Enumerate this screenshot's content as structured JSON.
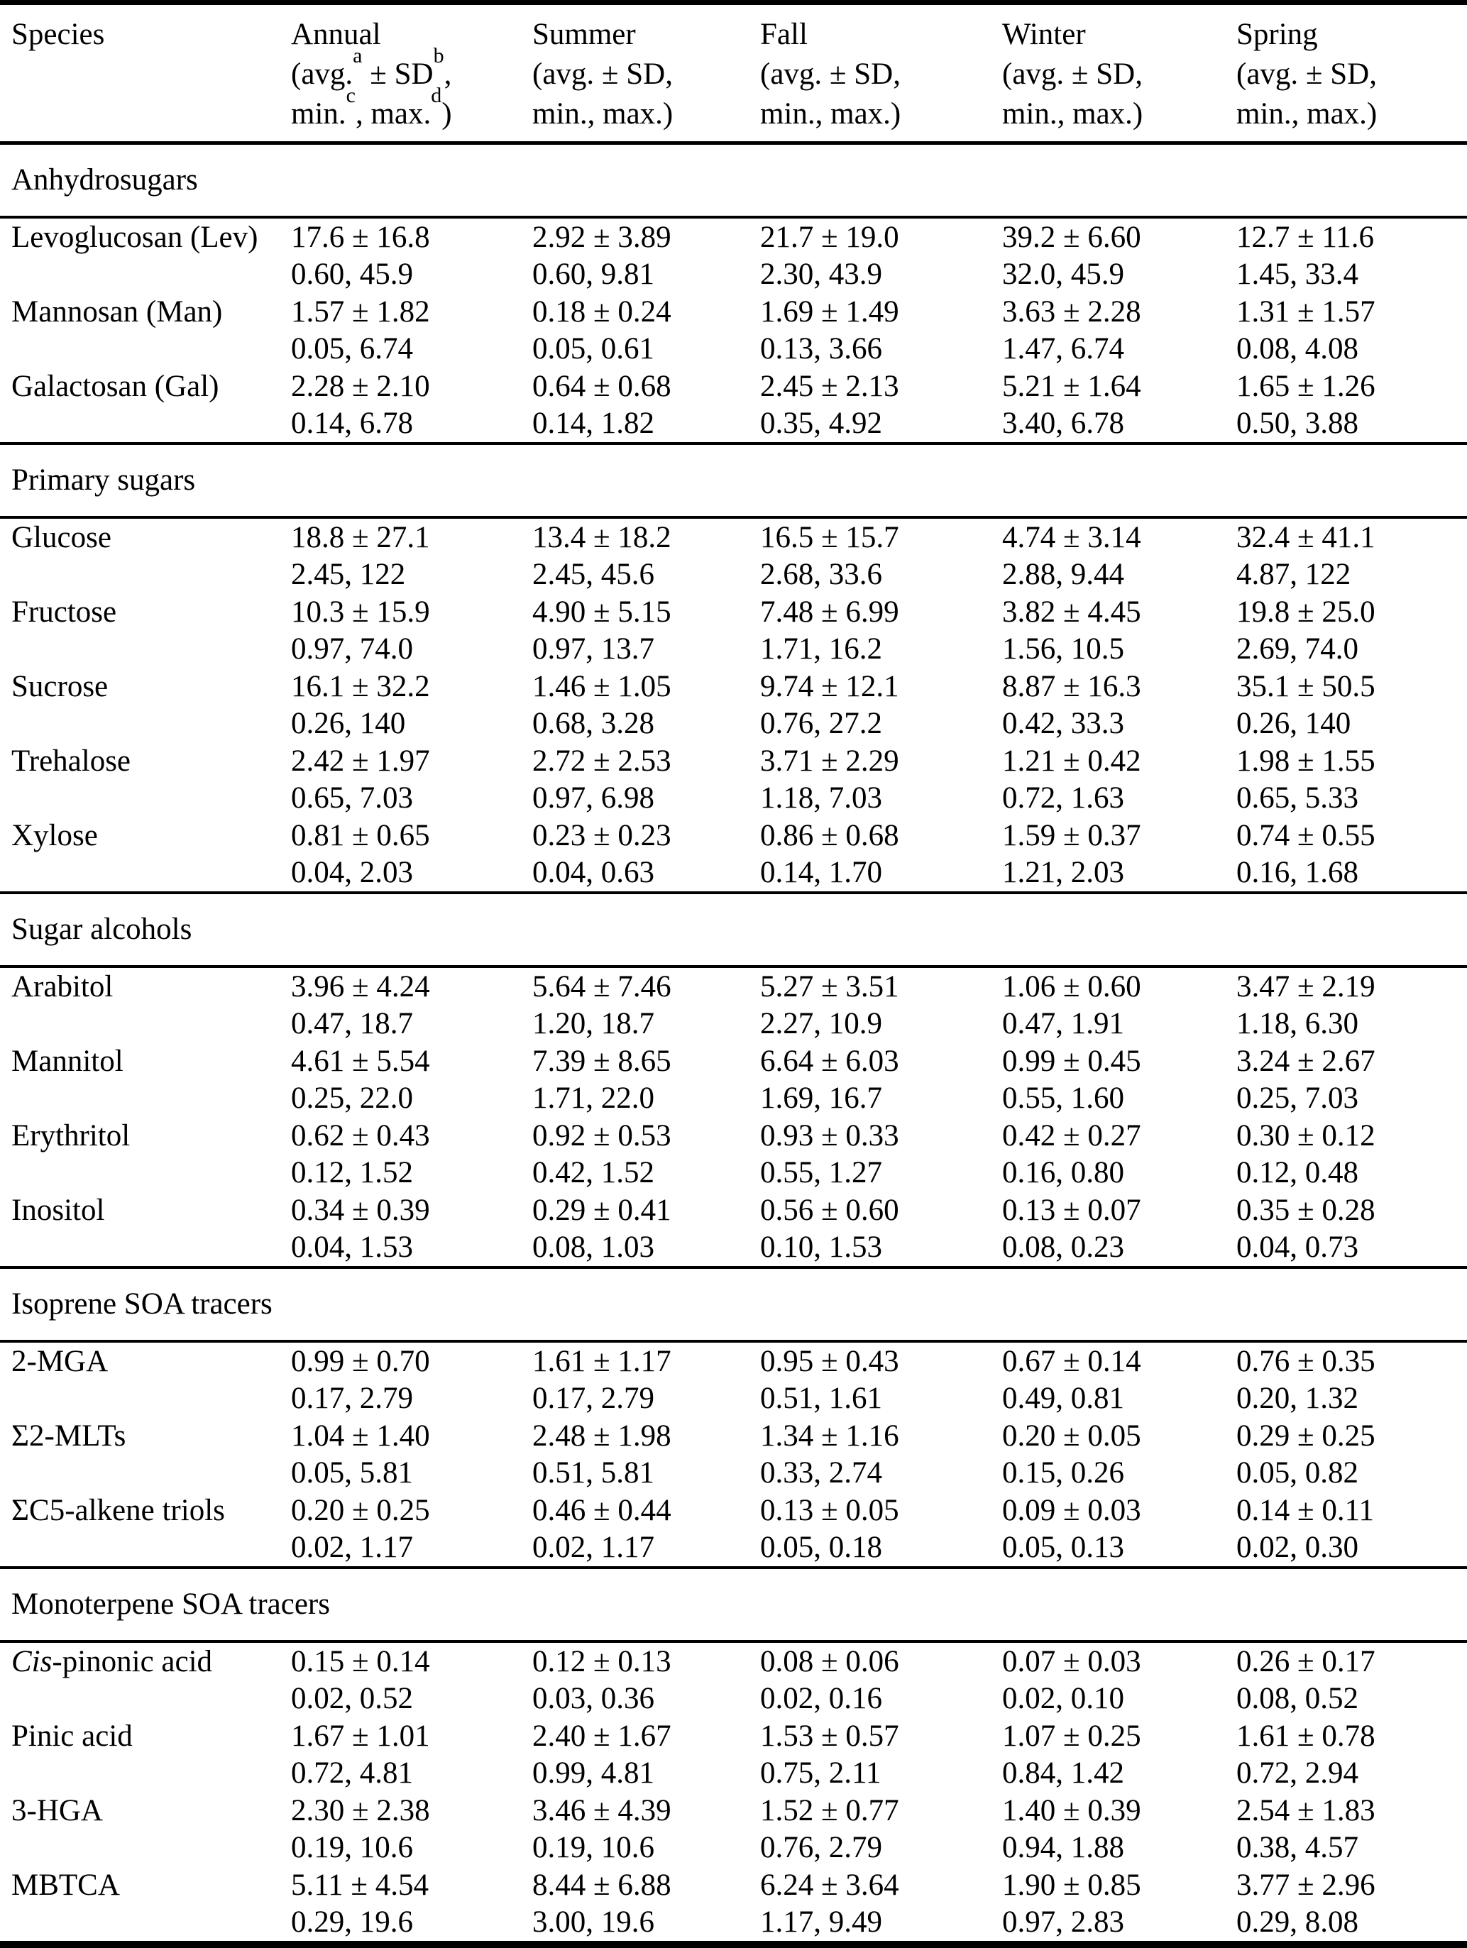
{
  "header": {
    "species_label": "Species",
    "annual": {
      "name": "Annual",
      "l2a": "(avg.",
      "sup_a": "a",
      "l2b": " ± SD",
      "sup_b": "b",
      "l2c": ",",
      "l3a": "min.",
      "sup_c": "c",
      "l3b": ", max.",
      "sup_d": "d",
      "l3c": ")"
    },
    "seasons": [
      {
        "name": "Summer",
        "line2": "(avg. ± SD,",
        "line3": "min., max.)"
      },
      {
        "name": "Fall",
        "line2": "(avg. ± SD,",
        "line3": "min., max.)"
      },
      {
        "name": "Winter",
        "line2": "(avg. ± SD,",
        "line3": "min., max.)"
      },
      {
        "name": "Spring",
        "line2": "(avg. ± SD,",
        "line3": "min., max.)"
      }
    ]
  },
  "sections": [
    {
      "title": "Anhydrosugars",
      "rows": [
        {
          "species_italic": "",
          "species": "Levoglucosan (Lev)",
          "values": [
            {
              "avg": "17.6 ± 16.8",
              "range": "0.60, 45.9"
            },
            {
              "avg": "2.92 ± 3.89",
              "range": "0.60, 9.81"
            },
            {
              "avg": "21.7 ± 19.0",
              "range": "2.30, 43.9"
            },
            {
              "avg": "39.2 ± 6.60",
              "range": "32.0, 45.9"
            },
            {
              "avg": "12.7 ± 11.6",
              "range": "1.45, 33.4"
            }
          ]
        },
        {
          "species_italic": "",
          "species": "Mannosan (Man)",
          "values": [
            {
              "avg": "1.57 ± 1.82",
              "range": "0.05, 6.74"
            },
            {
              "avg": "0.18 ± 0.24",
              "range": "0.05, 0.61"
            },
            {
              "avg": "1.69 ± 1.49",
              "range": "0.13, 3.66"
            },
            {
              "avg": "3.63 ± 2.28",
              "range": "1.47, 6.74"
            },
            {
              "avg": "1.31 ± 1.57",
              "range": "0.08, 4.08"
            }
          ]
        },
        {
          "species_italic": "",
          "species": "Galactosan (Gal)",
          "values": [
            {
              "avg": "2.28 ± 2.10",
              "range": "0.14, 6.78"
            },
            {
              "avg": "0.64 ± 0.68",
              "range": "0.14, 1.82"
            },
            {
              "avg": "2.45 ± 2.13",
              "range": "0.35, 4.92"
            },
            {
              "avg": "5.21 ± 1.64",
              "range": "3.40, 6.78"
            },
            {
              "avg": "1.65 ± 1.26",
              "range": "0.50, 3.88"
            }
          ]
        }
      ]
    },
    {
      "title": "Primary sugars",
      "rows": [
        {
          "species_italic": "",
          "species": "Glucose",
          "values": [
            {
              "avg": "18.8 ± 27.1",
              "range": "2.45, 122"
            },
            {
              "avg": "13.4 ± 18.2",
              "range": "2.45, 45.6"
            },
            {
              "avg": "16.5 ± 15.7",
              "range": "2.68, 33.6"
            },
            {
              "avg": "4.74 ± 3.14",
              "range": "2.88, 9.44"
            },
            {
              "avg": "32.4 ± 41.1",
              "range": "4.87, 122"
            }
          ]
        },
        {
          "species_italic": "",
          "species": "Fructose",
          "values": [
            {
              "avg": "10.3 ± 15.9",
              "range": "0.97, 74.0"
            },
            {
              "avg": "4.90 ± 5.15",
              "range": "0.97, 13.7"
            },
            {
              "avg": "7.48 ± 6.99",
              "range": "1.71, 16.2"
            },
            {
              "avg": "3.82 ± 4.45",
              "range": "1.56, 10.5"
            },
            {
              "avg": "19.8 ± 25.0",
              "range": "2.69, 74.0"
            }
          ]
        },
        {
          "species_italic": "",
          "species": "Sucrose",
          "values": [
            {
              "avg": "16.1 ± 32.2",
              "range": "0.26, 140"
            },
            {
              "avg": "1.46 ± 1.05",
              "range": "0.68, 3.28"
            },
            {
              "avg": "9.74 ± 12.1",
              "range": "0.76, 27.2"
            },
            {
              "avg": "8.87 ± 16.3",
              "range": "0.42, 33.3"
            },
            {
              "avg": "35.1 ± 50.5",
              "range": "0.26, 140"
            }
          ]
        },
        {
          "species_italic": "",
          "species": "Trehalose",
          "values": [
            {
              "avg": "2.42 ± 1.97",
              "range": "0.65, 7.03"
            },
            {
              "avg": "2.72 ± 2.53",
              "range": "0.97, 6.98"
            },
            {
              "avg": "3.71 ± 2.29",
              "range": "1.18, 7.03"
            },
            {
              "avg": "1.21 ± 0.42",
              "range": "0.72, 1.63"
            },
            {
              "avg": "1.98 ± 1.55",
              "range": "0.65, 5.33"
            }
          ]
        },
        {
          "species_italic": "",
          "species": "Xylose",
          "values": [
            {
              "avg": "0.81 ± 0.65",
              "range": "0.04, 2.03"
            },
            {
              "avg": "0.23 ± 0.23",
              "range": "0.04, 0.63"
            },
            {
              "avg": "0.86 ± 0.68",
              "range": "0.14, 1.70"
            },
            {
              "avg": "1.59 ± 0.37",
              "range": "1.21, 2.03"
            },
            {
              "avg": "0.74 ± 0.55",
              "range": "0.16, 1.68"
            }
          ]
        }
      ]
    },
    {
      "title": "Sugar alcohols",
      "rows": [
        {
          "species_italic": "",
          "species": "Arabitol",
          "values": [
            {
              "avg": "3.96 ± 4.24",
              "range": "0.47, 18.7"
            },
            {
              "avg": "5.64 ± 7.46",
              "range": "1.20, 18.7"
            },
            {
              "avg": "5.27 ± 3.51",
              "range": "2.27, 10.9"
            },
            {
              "avg": "1.06 ± 0.60",
              "range": "0.47, 1.91"
            },
            {
              "avg": "3.47 ± 2.19",
              "range": "1.18, 6.30"
            }
          ]
        },
        {
          "species_italic": "",
          "species": "Mannitol",
          "values": [
            {
              "avg": "4.61 ± 5.54",
              "range": "0.25, 22.0"
            },
            {
              "avg": "7.39 ± 8.65",
              "range": "1.71, 22.0"
            },
            {
              "avg": "6.64 ± 6.03",
              "range": "1.69, 16.7"
            },
            {
              "avg": "0.99 ± 0.45",
              "range": "0.55, 1.60"
            },
            {
              "avg": "3.24 ± 2.67",
              "range": "0.25, 7.03"
            }
          ]
        },
        {
          "species_italic": "",
          "species": "Erythritol",
          "values": [
            {
              "avg": "0.62 ± 0.43",
              "range": "0.12, 1.52"
            },
            {
              "avg": "0.92 ± 0.53",
              "range": "0.42, 1.52"
            },
            {
              "avg": "0.93 ± 0.33",
              "range": "0.55, 1.27"
            },
            {
              "avg": "0.42 ± 0.27",
              "range": "0.16, 0.80"
            },
            {
              "avg": "0.30 ± 0.12",
              "range": "0.12, 0.48"
            }
          ]
        },
        {
          "species_italic": "",
          "species": "Inositol",
          "values": [
            {
              "avg": "0.34 ± 0.39",
              "range": "0.04, 1.53"
            },
            {
              "avg": "0.29 ± 0.41",
              "range": "0.08, 1.03"
            },
            {
              "avg": "0.56 ± 0.60",
              "range": "0.10, 1.53"
            },
            {
              "avg": "0.13 ± 0.07",
              "range": "0.08, 0.23"
            },
            {
              "avg": "0.35 ± 0.28",
              "range": "0.04, 0.73"
            }
          ]
        }
      ]
    },
    {
      "title": "Isoprene SOA tracers",
      "rows": [
        {
          "species_italic": "",
          "species": "2-MGA",
          "values": [
            {
              "avg": "0.99 ± 0.70",
              "range": "0.17, 2.79"
            },
            {
              "avg": "1.61 ± 1.17",
              "range": "0.17, 2.79"
            },
            {
              "avg": "0.95 ± 0.43",
              "range": "0.51, 1.61"
            },
            {
              "avg": "0.67 ± 0.14",
              "range": "0.49, 0.81"
            },
            {
              "avg": "0.76 ± 0.35",
              "range": "0.20, 1.32"
            }
          ]
        },
        {
          "species_italic": "",
          "species": "Σ2-MLTs",
          "values": [
            {
              "avg": "1.04 ± 1.40",
              "range": "0.05, 5.81"
            },
            {
              "avg": "2.48 ± 1.98",
              "range": "0.51, 5.81"
            },
            {
              "avg": "1.34 ± 1.16",
              "range": "0.33, 2.74"
            },
            {
              "avg": "0.20 ± 0.05",
              "range": "0.15, 0.26"
            },
            {
              "avg": "0.29 ± 0.25",
              "range": "0.05, 0.82"
            }
          ]
        },
        {
          "species_italic": "",
          "species": "ΣC5-alkene triols",
          "values": [
            {
              "avg": "0.20 ± 0.25",
              "range": "0.02, 1.17"
            },
            {
              "avg": "0.46 ± 0.44",
              "range": "0.02, 1.17"
            },
            {
              "avg": "0.13 ± 0.05",
              "range": "0.05, 0.18"
            },
            {
              "avg": "0.09 ± 0.03",
              "range": "0.05, 0.13"
            },
            {
              "avg": "0.14 ± 0.11",
              "range": "0.02, 0.30"
            }
          ]
        }
      ]
    },
    {
      "title": "Monoterpene SOA tracers",
      "rows": [
        {
          "species_italic": "Cis",
          "species": "-pinonic acid",
          "values": [
            {
              "avg": "0.15 ± 0.14",
              "range": "0.02, 0.52"
            },
            {
              "avg": "0.12 ± 0.13",
              "range": "0.03, 0.36"
            },
            {
              "avg": "0.08 ± 0.06",
              "range": "0.02, 0.16"
            },
            {
              "avg": "0.07 ± 0.03",
              "range": "0.02, 0.10"
            },
            {
              "avg": "0.26 ± 0.17",
              "range": "0.08, 0.52"
            }
          ]
        },
        {
          "species_italic": "",
          "species": "Pinic acid",
          "values": [
            {
              "avg": "1.67 ± 1.01",
              "range": "0.72, 4.81"
            },
            {
              "avg": "2.40 ± 1.67",
              "range": "0.99, 4.81"
            },
            {
              "avg": "1.53 ± 0.57",
              "range": "0.75, 2.11"
            },
            {
              "avg": "1.07 ± 0.25",
              "range": "0.84, 1.42"
            },
            {
              "avg": "1.61 ± 0.78",
              "range": "0.72, 2.94"
            }
          ]
        },
        {
          "species_italic": "",
          "species": "3-HGA",
          "values": [
            {
              "avg": "2.30 ± 2.38",
              "range": "0.19, 10.6"
            },
            {
              "avg": "3.46 ± 4.39",
              "range": "0.19, 10.6"
            },
            {
              "avg": "1.52 ± 0.77",
              "range": "0.76, 2.79"
            },
            {
              "avg": "1.40 ± 0.39",
              "range": "0.94, 1.88"
            },
            {
              "avg": "2.54 ± 1.83",
              "range": "0.38, 4.57"
            }
          ]
        },
        {
          "species_italic": "",
          "species": "MBTCA",
          "values": [
            {
              "avg": "5.11 ± 4.54",
              "range": "0.29, 19.6"
            },
            {
              "avg": "8.44 ± 6.88",
              "range": "3.00, 19.6"
            },
            {
              "avg": "6.24 ± 3.64",
              "range": "1.17, 9.49"
            },
            {
              "avg": "1.90 ± 0.85",
              "range": "0.97, 2.83"
            },
            {
              "avg": "3.77 ± 2.96",
              "range": "0.29, 8.08"
            }
          ]
        }
      ]
    }
  ]
}
